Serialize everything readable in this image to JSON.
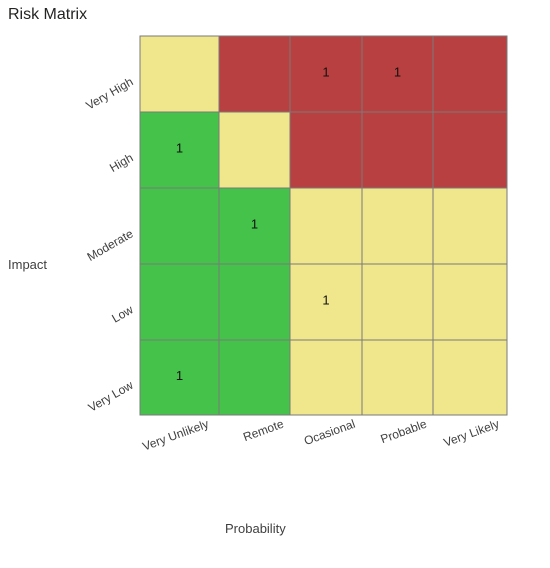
{
  "chart_data": {
    "type": "heatmap",
    "title": "Risk Matrix",
    "xlabel": "Probability",
    "ylabel": "Impact",
    "x_categories": [
      "Very Unlikely",
      "Remote",
      "Ocasional",
      "Probable",
      "Very Likely"
    ],
    "y_categories": [
      "Very High",
      "High",
      "Moderate",
      "Low",
      "Very Low"
    ],
    "colors": {
      "green": "#44c24a",
      "yellow": "#f0e68c",
      "red": "#b94040"
    },
    "cell_colors": [
      [
        "yellow",
        "red",
        "red",
        "red",
        "red"
      ],
      [
        "green",
        "yellow",
        "red",
        "red",
        "red"
      ],
      [
        "green",
        "green",
        "yellow",
        "yellow",
        "yellow"
      ],
      [
        "green",
        "green",
        "yellow",
        "yellow",
        "yellow"
      ],
      [
        "green",
        "green",
        "yellow",
        "yellow",
        "yellow"
      ]
    ],
    "counts": [
      [
        null,
        null,
        1,
        1,
        null
      ],
      [
        1,
        null,
        null,
        null,
        null
      ],
      [
        null,
        1,
        null,
        null,
        null
      ],
      [
        null,
        null,
        1,
        null,
        null
      ],
      [
        1,
        null,
        null,
        null,
        null
      ]
    ]
  }
}
